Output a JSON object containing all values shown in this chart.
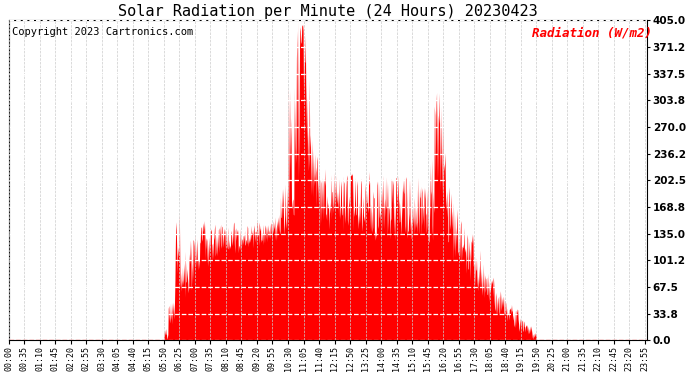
{
  "title": "Solar Radiation per Minute (24 Hours) 20230423",
  "ylabel": "Radiation (W/m2)",
  "copyright": "Copyright 2023 Cartronics.com",
  "fill_color": "#FF0000",
  "line_color": "#FF0000",
  "background_color": "#FFFFFF",
  "yticks": [
    0.0,
    33.8,
    67.5,
    101.2,
    135.0,
    168.8,
    202.5,
    236.2,
    270.0,
    303.8,
    337.5,
    371.2,
    405.0
  ],
  "ylim": [
    0.0,
    405.0
  ],
  "xtick_minutes": [
    0,
    35,
    70,
    105,
    140,
    175,
    210,
    245,
    280,
    315,
    350,
    385,
    420,
    455,
    490,
    525,
    560,
    595,
    630,
    665,
    700,
    735,
    770,
    805,
    840,
    875,
    910,
    945,
    980,
    1015,
    1050,
    1085,
    1120,
    1155,
    1190,
    1225,
    1260,
    1295,
    1330,
    1365,
    1400,
    1435
  ],
  "xtick_labels": [
    "00:00",
    "00:35",
    "01:10",
    "01:45",
    "02:20",
    "02:55",
    "03:30",
    "04:05",
    "04:40",
    "05:15",
    "05:50",
    "06:25",
    "07:00",
    "07:35",
    "08:10",
    "08:45",
    "09:20",
    "09:55",
    "10:30",
    "11:05",
    "11:40",
    "12:15",
    "12:50",
    "13:25",
    "14:00",
    "14:35",
    "15:10",
    "15:45",
    "16:20",
    "16:55",
    "17:30",
    "18:05",
    "18:40",
    "19:15",
    "19:50",
    "20:25",
    "21:00",
    "21:35",
    "22:10",
    "22:45",
    "23:20",
    "23:55"
  ],
  "title_fontsize": 11,
  "ylabel_fontsize": 9,
  "copyright_fontsize": 7.5
}
